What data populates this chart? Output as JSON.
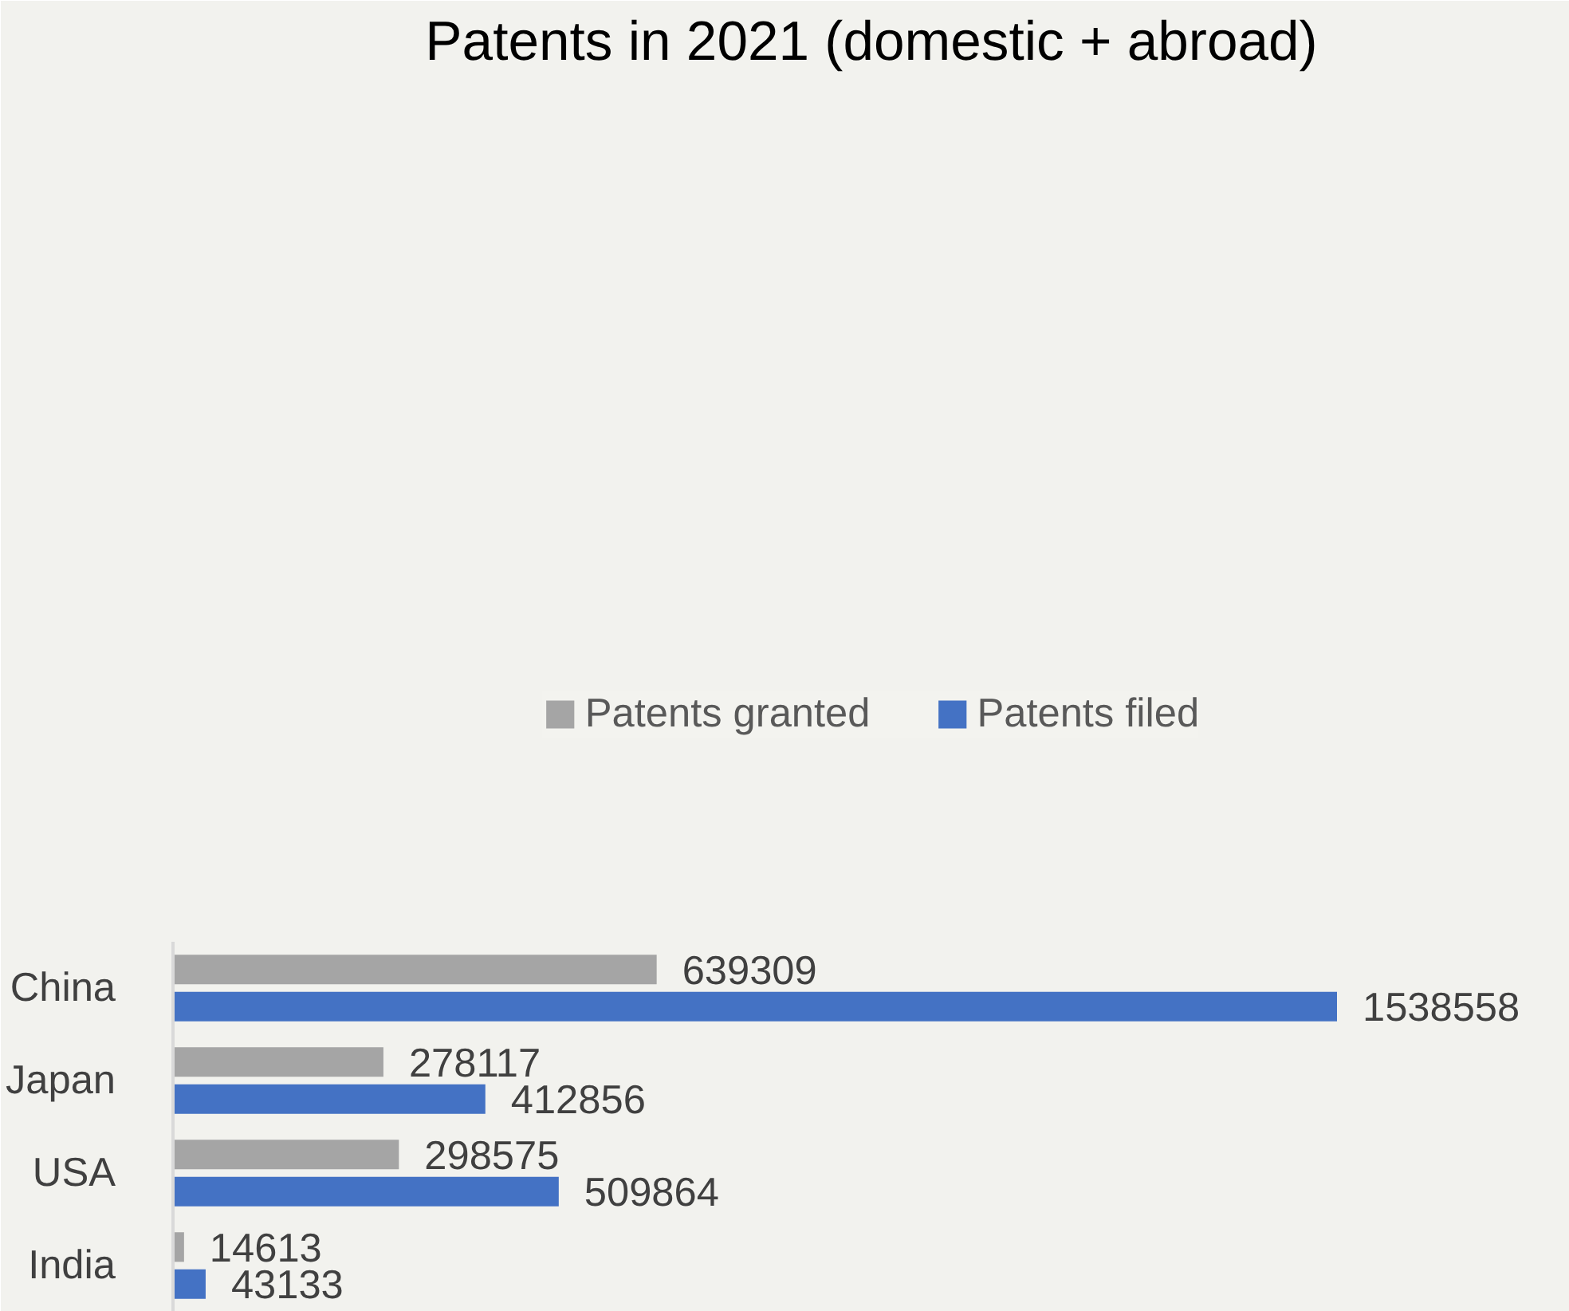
{
  "chart_data": {
    "type": "bar",
    "title": "Patents in 2021 (domestic + abroad)",
    "orientation": "horizontal",
    "categories": [
      "China",
      "Japan",
      "USA",
      "India"
    ],
    "series": [
      {
        "name": "Patents granted",
        "color": "#a5a5a5",
        "values": [
          639309,
          278117,
          298575,
          14613
        ]
      },
      {
        "name": "Patents filed",
        "color": "#4472c4",
        "values": [
          1538558,
          412856,
          509864,
          43133
        ]
      }
    ],
    "data_labels": true,
    "legend": "top",
    "grid": false
  }
}
